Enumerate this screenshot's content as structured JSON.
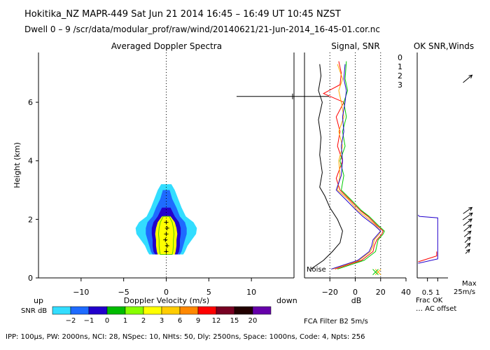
{
  "header": {
    "line1": "Hokitika_NZ   MAPR-449   Sat Jun 21 2014 16:45 – 16:49 UT 10:45 NZST",
    "line2": "Dwell   0 –  9    /scr/data/modular_prof/raw/wind/20140621/21-Jun-2014_16-45-01.cor.nc"
  },
  "footer": {
    "params": "IPP: 100µs,  PW: 2000ns,  NCI:  28,  NSpec: 10,  NHts: 50,  Dly: 2500ns,  Space: 1000ns,  Code: 4,  Npts: 256",
    "filter": "FCA Filter B2   5m/s"
  },
  "colors": {
    "snr_scale": [
      "#33ddff",
      "#1e6bff",
      "#2200cc",
      "#00bb00",
      "#88ff00",
      "#ffff00",
      "#ffcc00",
      "#ff8800",
      "#ff0000",
      "#770022",
      "#220000",
      "#6600aa"
    ],
    "series": [
      "#ff0000",
      "#ffaa00",
      "#00cc00",
      "#2200cc"
    ]
  },
  "chart_data": [
    {
      "type": "heatmap",
      "title": "Averaged Doppler Spectra",
      "xlabel": "Doppler Velocity (m/s)",
      "ylabel": "Height (km)",
      "x_ticks": [
        -10,
        -5,
        0,
        5,
        10
      ],
      "y_ticks": [
        0,
        2,
        4,
        6
      ],
      "xlim": [
        -15,
        15
      ],
      "ylim": [
        0,
        7.7
      ],
      "left_label": "up",
      "right_label": "down",
      "snr_label": "SNR dB",
      "snr_levels": [
        "−2",
        "−1",
        "0",
        "1",
        "2",
        "3",
        "6",
        "9",
        "12",
        "15",
        "20"
      ],
      "echo_profile": [
        {
          "h": 0.8,
          "w": [
            1.0,
            1.3,
            1.6,
            2.0
          ]
        },
        {
          "h": 0.9,
          "w": [
            1.1,
            1.5,
            1.8,
            2.2
          ]
        },
        {
          "h": 1.1,
          "w": [
            1.2,
            1.6,
            2.0,
            2.5
          ]
        },
        {
          "h": 1.3,
          "w": [
            1.2,
            1.6,
            2.2,
            3.0
          ]
        },
        {
          "h": 1.5,
          "w": [
            1.3,
            1.7,
            2.4,
            3.5
          ]
        },
        {
          "h": 1.7,
          "w": [
            1.2,
            1.7,
            2.4,
            3.6
          ]
        },
        {
          "h": 1.9,
          "w": [
            1.0,
            1.5,
            2.2,
            3.2
          ]
        },
        {
          "h": 2.1,
          "w": [
            0.5,
            1.0,
            1.6,
            2.3
          ]
        },
        {
          "h": 2.4,
          "w": [
            0,
            0.5,
            1.2,
            1.8
          ]
        },
        {
          "h": 2.7,
          "w": [
            0,
            0,
            0.7,
            1.4
          ]
        },
        {
          "h": 3.0,
          "w": [
            0,
            0,
            0.4,
            1.0
          ]
        },
        {
          "h": 3.2,
          "w": [
            0,
            0,
            0,
            0.6
          ]
        }
      ],
      "peak_velocity": [
        {
          "h": 0.9,
          "v": 0.0
        },
        {
          "h": 1.1,
          "v": 0.1
        },
        {
          "h": 1.3,
          "v": -0.1
        },
        {
          "h": 1.5,
          "v": 0.0
        },
        {
          "h": 1.7,
          "v": 0.1
        },
        {
          "h": 1.9,
          "v": 0.0
        }
      ],
      "marker_height": 6.2
    },
    {
      "type": "line",
      "title": "Signal, SNR",
      "xlabel": "dB",
      "x_ticks": [
        -20,
        0,
        20,
        40
      ],
      "xlim": [
        -40,
        40
      ],
      "ylim": [
        0,
        7.7
      ],
      "noise_label": "Noise",
      "series": [
        {
          "name": "0",
          "points": [
            [
              -16,
              0.3
            ],
            [
              5,
              0.6
            ],
            [
              14,
              0.9
            ],
            [
              15,
              1.1
            ],
            [
              17,
              1.3
            ],
            [
              21,
              1.5
            ],
            [
              22,
              1.6
            ],
            [
              17,
              1.8
            ],
            [
              10,
              2.1
            ],
            [
              4,
              2.3
            ],
            [
              -5,
              2.7
            ],
            [
              -12,
              3.0
            ],
            [
              -15,
              3.4
            ],
            [
              -10,
              4.0
            ],
            [
              -14,
              4.5
            ],
            [
              -12,
              5.0
            ],
            [
              -15,
              5.5
            ],
            [
              -9,
              6.0
            ],
            [
              -25,
              6.3
            ],
            [
              -12,
              6.6
            ],
            [
              -11,
              7.0
            ],
            [
              -13,
              7.4
            ]
          ]
        },
        {
          "name": "1",
          "points": [
            [
              -18,
              0.3
            ],
            [
              3,
              0.6
            ],
            [
              12,
              0.9
            ],
            [
              14,
              1.1
            ],
            [
              15,
              1.3
            ],
            [
              19,
              1.5
            ],
            [
              20,
              1.6
            ],
            [
              16,
              1.8
            ],
            [
              8,
              2.1
            ],
            [
              2,
              2.3
            ],
            [
              -6,
              2.7
            ],
            [
              -14,
              3.0
            ],
            [
              -12,
              3.5
            ],
            [
              -13,
              4.0
            ],
            [
              -10,
              4.5
            ],
            [
              -13,
              5.0
            ],
            [
              -9,
              5.5
            ],
            [
              -11,
              6.0
            ],
            [
              -13,
              6.4
            ],
            [
              -10,
              6.8
            ],
            [
              -14,
              7.3
            ]
          ]
        },
        {
          "name": "2",
          "points": [
            [
              -14,
              0.3
            ],
            [
              7,
              0.6
            ],
            [
              16,
              0.9
            ],
            [
              17,
              1.1
            ],
            [
              18,
              1.3
            ],
            [
              22,
              1.5
            ],
            [
              23,
              1.6
            ],
            [
              18,
              1.8
            ],
            [
              11,
              2.1
            ],
            [
              5,
              2.3
            ],
            [
              -4,
              2.7
            ],
            [
              -11,
              3.0
            ],
            [
              -9,
              3.5
            ],
            [
              -12,
              4.0
            ],
            [
              -8,
              4.5
            ],
            [
              -10,
              5.0
            ],
            [
              -7,
              5.5
            ],
            [
              -9,
              6.0
            ],
            [
              -6,
              6.4
            ],
            [
              -8,
              6.8
            ],
            [
              -7,
              7.4
            ]
          ]
        },
        {
          "name": "3",
          "points": [
            [
              -19,
              0.3
            ],
            [
              2,
              0.6
            ],
            [
              11,
              0.9
            ],
            [
              13,
              1.1
            ],
            [
              14,
              1.3
            ],
            [
              18,
              1.5
            ],
            [
              20,
              1.6
            ],
            [
              15,
              1.8
            ],
            [
              6,
              2.1
            ],
            [
              1,
              2.3
            ],
            [
              -8,
              2.7
            ],
            [
              -15,
              3.0
            ],
            [
              -11,
              3.5
            ],
            [
              -10,
              4.0
            ],
            [
              -11,
              4.5
            ],
            [
              -9,
              5.0
            ],
            [
              -10,
              5.5
            ],
            [
              -8,
              6.0
            ],
            [
              -7,
              6.4
            ],
            [
              -9,
              6.8
            ],
            [
              -8,
              7.3
            ]
          ]
        },
        {
          "name": "noise",
          "points": [
            [
              -35,
              0.3
            ],
            [
              -25,
              0.6
            ],
            [
              -18,
              0.9
            ],
            [
              -12,
              1.2
            ],
            [
              -10,
              1.6
            ],
            [
              -14,
              2.0
            ],
            [
              -20,
              2.4
            ],
            [
              -24,
              2.8
            ],
            [
              -28,
              3.1
            ],
            [
              -26,
              3.6
            ],
            [
              -28,
              4.2
            ],
            [
              -27,
              4.8
            ],
            [
              -29,
              5.4
            ],
            [
              -26,
              6.0
            ],
            [
              -29,
              6.4
            ],
            [
              -27,
              6.9
            ],
            [
              -28,
              7.3
            ]
          ]
        }
      ],
      "x_markers": [
        {
          "x": 18,
          "y": 0.2
        },
        {
          "x": 16,
          "y": 0.2
        }
      ]
    },
    {
      "type": "line",
      "title": "OK SNR,Winds",
      "xlabel": "Frac OK",
      "x_ticks": [
        "0.5",
        "1"
      ],
      "xlim": [
        0,
        1.5
      ],
      "ylim": [
        0,
        7.7
      ],
      "note": "… AC offset",
      "legend": [
        "0",
        "1",
        "2",
        "3"
      ],
      "series": [
        {
          "name": "red",
          "points": [
            [
              0.05,
              0.55
            ],
            [
              0.95,
              0.75
            ],
            [
              0.95,
              0.9
            ]
          ]
        },
        {
          "name": "blue",
          "points": [
            [
              0.05,
              0.5
            ],
            [
              1.0,
              0.65
            ],
            [
              1.0,
              2.05
            ],
            [
              0.1,
              2.1
            ],
            [
              0.05,
              2.15
            ]
          ]
        }
      ],
      "wind_label_top": "Max",
      "wind_label_bottom": "25m/s",
      "wind_barbs": [
        {
          "h": 0.9,
          "speed": 0.3,
          "dir": 45
        },
        {
          "h": 1.1,
          "speed": 0.35,
          "dir": 45
        },
        {
          "h": 1.3,
          "speed": 0.4,
          "dir": 45
        },
        {
          "h": 1.5,
          "speed": 0.45,
          "dir": 40
        },
        {
          "h": 1.7,
          "speed": 0.5,
          "dir": 40
        },
        {
          "h": 1.9,
          "speed": 0.55,
          "dir": 38
        },
        {
          "h": 2.1,
          "speed": 0.6,
          "dir": 35
        },
        {
          "h": 2.3,
          "speed": 0.55,
          "dir": 35
        },
        {
          "h": 6.8,
          "speed": 0.6,
          "dir": 40
        }
      ]
    }
  ]
}
